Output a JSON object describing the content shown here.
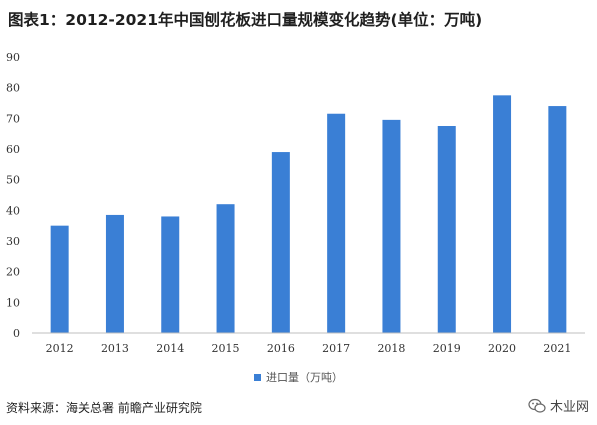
{
  "title": "图表1：2012-2021年中国刨花板进口量规模变化趋势(单位：万吨)",
  "source": "资料来源：海关总署 前瞻产业研究院",
  "watermark": "木业网",
  "chart_data": {
    "type": "bar",
    "title": "图表1：2012-2021年中国刨花板进口量规模变化趋势(单位：万吨)",
    "categories": [
      "2012",
      "2013",
      "2014",
      "2015",
      "2016",
      "2017",
      "2018",
      "2019",
      "2020",
      "2021"
    ],
    "series": [
      {
        "name": "进口量（万吨）",
        "values": [
          35,
          38.5,
          38,
          42,
          59,
          71.5,
          69.5,
          67.5,
          77.5,
          74
        ],
        "color": "#3a7fd5"
      }
    ],
    "ylim": [
      0,
      90
    ],
    "yticks": [
      "0",
      "10",
      "20",
      "30",
      "40",
      "50",
      "60",
      "70",
      "80",
      "90"
    ],
    "grid": false,
    "legend_position": "bottom"
  }
}
